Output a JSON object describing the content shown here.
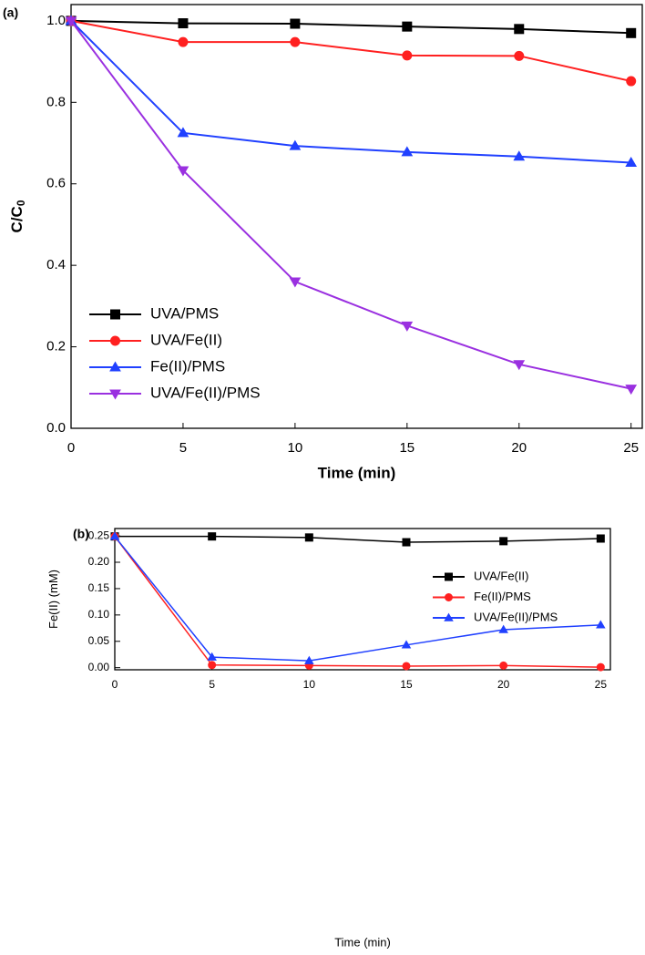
{
  "chart_data": [
    {
      "type": "line",
      "panel_label": "(a)",
      "xlabel": "Time (min)",
      "ylabel": "C/C",
      "ylabel_subscript": "0",
      "x": [
        0,
        5,
        10,
        15,
        20,
        25
      ],
      "xlim": [
        0,
        25.5
      ],
      "xticks": [
        0,
        5,
        10,
        15,
        20,
        25
      ],
      "ylim": [
        0,
        1.04
      ],
      "yticks": [
        {
          "value": 0,
          "label": "0.0"
        },
        0.2,
        0.4,
        0.6,
        0.8,
        {
          "value": 1,
          "label": "1.0"
        }
      ],
      "legend": "lower left",
      "series": [
        {
          "name": "UVA/PMS",
          "color": "#000000",
          "marker": "square",
          "values": [
            1.0,
            0.994,
            0.993,
            0.986,
            0.98,
            0.97
          ]
        },
        {
          "name": "UVA/Fe(II)",
          "color": "#ff2020",
          "marker": "circle",
          "values": [
            1.0,
            0.948,
            0.948,
            0.915,
            0.914,
            0.852
          ]
        },
        {
          "name": "Fe(II)/PMS",
          "color": "#2040ff",
          "marker": "triangle",
          "values": [
            1.0,
            0.725,
            0.693,
            0.678,
            0.667,
            0.652
          ]
        },
        {
          "name": "UVA/Fe(II)/PMS",
          "color": "#9a30e0",
          "marker": "triangle-down",
          "values": [
            1.0,
            0.633,
            0.36,
            0.252,
            0.157,
            0.097
          ]
        }
      ]
    },
    {
      "type": "line",
      "panel_label": "(b)",
      "xlabel": "Time (min)",
      "ylabel": "Fe(II) (mM)",
      "x": [
        0,
        5,
        10,
        15,
        20,
        25
      ],
      "xlim": [
        0,
        25.5
      ],
      "xticks": [
        0,
        5,
        10,
        15,
        20,
        25
      ],
      "ylim": [
        -0.004,
        0.264
      ],
      "yticks": [
        {
          "value": 0,
          "label": "0.00"
        },
        0.05,
        {
          "value": 0.1,
          "label": "0.10"
        },
        0.15,
        {
          "value": 0.2,
          "label": "0.20"
        },
        0.25
      ],
      "legend": "upper right",
      "series": [
        {
          "name": "UVA/Fe(II)",
          "color": "#000000",
          "marker": "square",
          "values": [
            0.249,
            0.249,
            0.247,
            0.238,
            0.24,
            0.245
          ],
          "errors": [
            0,
            0,
            0.001,
            0.006,
            0.001,
            0.001
          ]
        },
        {
          "name": "Fe(II)/PMS",
          "color": "#ff2020",
          "marker": "circle",
          "values": [
            0.249,
            0.005,
            0.004,
            0.003,
            0.004,
            0.001
          ]
        },
        {
          "name": "UVA/Fe(II)/PMS",
          "color": "#2040ff",
          "marker": "triangle",
          "values": [
            0.249,
            0.02,
            0.013,
            0.043,
            0.072,
            0.081
          ]
        }
      ]
    }
  ]
}
